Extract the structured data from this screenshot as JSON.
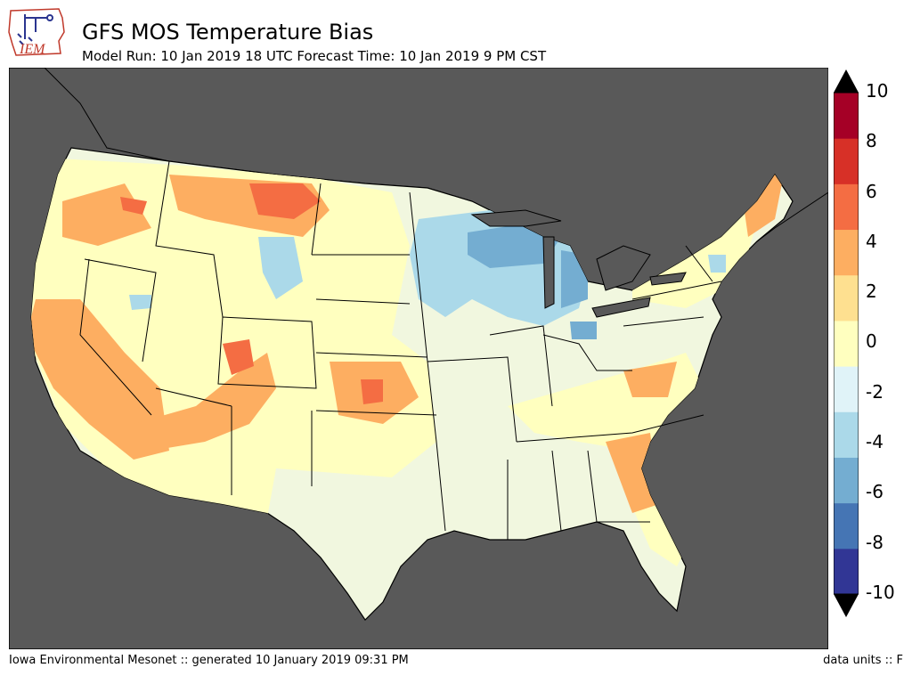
{
  "header": {
    "logo_text": "IEM",
    "title": "GFS MOS Temperature Bias",
    "subtitle": "Model Run: 10 Jan 2019 18 UTC Forecast Time: 10 Jan 2019 9 PM CST"
  },
  "colorbar": {
    "labels": [
      "10",
      "8",
      "6",
      "4",
      "2",
      "0",
      "-2",
      "-4",
      "-6",
      "-8",
      "-10"
    ],
    "levels": [
      -10,
      -8,
      -6,
      -4,
      -2,
      0,
      2,
      4,
      6,
      8,
      10
    ],
    "colors": [
      "#313695",
      "#4575b4",
      "#74add1",
      "#abd9e9",
      "#e0f3f8",
      "#ffffbf",
      "#fee090",
      "#fdae61",
      "#f46d43",
      "#d73027",
      "#a50026"
    ],
    "over_color": "#000000",
    "under_color": "#000000"
  },
  "map": {
    "background_color": "#595959",
    "land_base_color": "#f1f7df"
  },
  "footer": {
    "left": "Iowa Environmental Mesonet :: generated 10 January 2019 09:31 PM",
    "right": "data units :: F"
  }
}
